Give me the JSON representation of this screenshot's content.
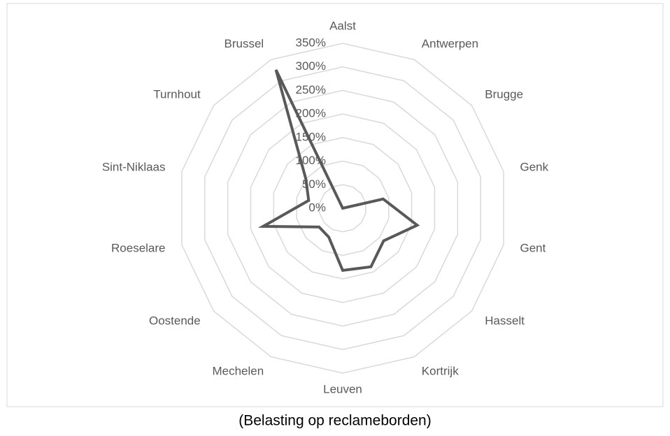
{
  "chart_data": {
    "type": "radar",
    "caption": "(Belasting op reclameborden)",
    "categories": [
      "Aalst",
      "Antwerpen",
      "Brugge",
      "Genk",
      "Gent",
      "Hasselt",
      "Kortrijk",
      "Leuven",
      "Mechelen",
      "Oostende",
      "Roeselare",
      "Sint-Niklaas",
      "Turnhout",
      "Brussel"
    ],
    "values": [
      0,
      0,
      0,
      88,
      162,
      111,
      138,
      132,
      68,
      64,
      173,
      74,
      100,
      326
    ],
    "color": "#595959",
    "ylim": [
      0,
      350
    ],
    "yticks": [
      {
        "value": 0,
        "label": "0%"
      },
      {
        "value": 50,
        "label": "50%"
      },
      {
        "value": 100,
        "label": "100%"
      },
      {
        "value": 150,
        "label": "150%"
      },
      {
        "value": 200,
        "label": "200%"
      },
      {
        "value": 250,
        "label": "250%"
      },
      {
        "value": 300,
        "label": "300%"
      },
      {
        "value": 350,
        "label": "350%"
      }
    ],
    "grid": true
  }
}
